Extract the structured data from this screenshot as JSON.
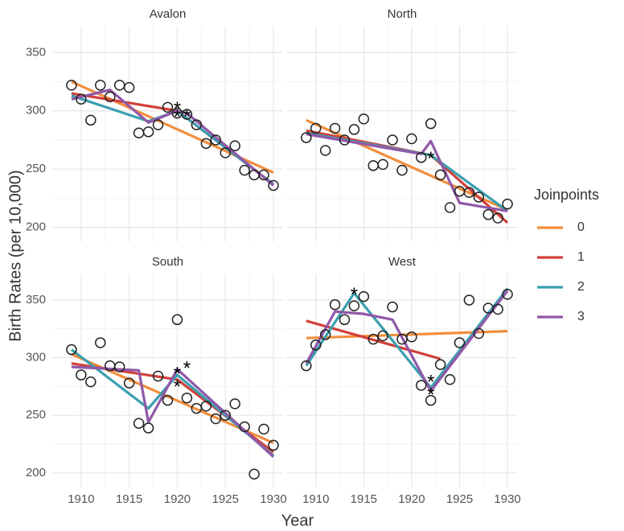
{
  "figure": {
    "x_label": "Year",
    "y_label": "Birth Rates (per 10,000)",
    "legend_title": "Joinpoints"
  },
  "chart_data": [
    {
      "type": "scatter",
      "title": "Avalon",
      "xlim": [
        1907,
        1931
      ],
      "ylim": [
        188,
        373
      ],
      "xticks": [
        1910,
        1915,
        1920,
        1925,
        1930
      ],
      "yticks": [
        200,
        250,
        300,
        350
      ],
      "grid": true,
      "x": [
        1909,
        1910,
        1911,
        1912,
        1913,
        1914,
        1915,
        1916,
        1917,
        1918,
        1919,
        1920,
        1921,
        1922,
        1923,
        1924,
        1925,
        1926,
        1927,
        1928,
        1929,
        1930
      ],
      "values": [
        322,
        310,
        292,
        322,
        312,
        322,
        320,
        281,
        282,
        288,
        303,
        298,
        297,
        288,
        272,
        275,
        264,
        270,
        249,
        245,
        245,
        236
      ],
      "series": [
        {
          "name": "0",
          "color": "#f28e3c",
          "x": [
            1909,
            1930
          ],
          "values": [
            325,
            247
          ]
        },
        {
          "name": "1",
          "color": "#d1403a",
          "x": [
            1909,
            1920,
            1930
          ],
          "values": [
            315,
            300,
            237
          ]
        },
        {
          "name": "2",
          "color": "#3a9fb0",
          "x": [
            1909,
            1917,
            1920,
            1930
          ],
          "values": [
            313,
            291,
            300,
            237
          ]
        },
        {
          "name": "3",
          "color": "#9158a8",
          "x": [
            1909,
            1913,
            1917,
            1920,
            1921,
            1930
          ],
          "values": [
            310,
            318,
            290,
            300,
            298,
            236
          ]
        }
      ],
      "annotations": [
        {
          "text": "*",
          "x": 1920,
          "y": 305
        },
        {
          "text": "*",
          "x": 1920,
          "y": 298
        },
        {
          "text": "*",
          "x": 1921,
          "y": 298
        }
      ]
    },
    {
      "type": "scatter",
      "title": "North",
      "xlim": [
        1907,
        1931
      ],
      "ylim": [
        188,
        373
      ],
      "xticks": [
        1910,
        1915,
        1920,
        1925,
        1930
      ],
      "yticks": [
        200,
        250,
        300,
        350
      ],
      "grid": true,
      "x": [
        1909,
        1910,
        1911,
        1912,
        1913,
        1914,
        1915,
        1916,
        1917,
        1918,
        1919,
        1920,
        1921,
        1922,
        1923,
        1924,
        1925,
        1926,
        1927,
        1928,
        1929,
        1930
      ],
      "values": [
        277,
        285,
        266,
        285,
        275,
        284,
        293,
        253,
        254,
        275,
        249,
        276,
        260,
        289,
        245,
        217,
        231,
        230,
        226,
        211,
        208,
        220
      ],
      "series": [
        {
          "name": "0",
          "color": "#f28e3c",
          "x": [
            1909,
            1930
          ],
          "values": [
            292,
            215
          ]
        },
        {
          "name": "1",
          "color": "#d1403a",
          "x": [
            1909,
            1922,
            1930
          ],
          "values": [
            283,
            262,
            204
          ]
        },
        {
          "name": "2",
          "color": "#3a9fb0",
          "x": [
            1909,
            1922,
            1930
          ],
          "values": [
            281,
            262,
            214
          ]
        },
        {
          "name": "3",
          "color": "#9158a8",
          "x": [
            1909,
            1921,
            1922,
            1925,
            1930
          ],
          "values": [
            280,
            263,
            274,
            221,
            214
          ]
        }
      ],
      "annotations": [
        {
          "text": "*",
          "x": 1922,
          "y": 262
        }
      ]
    },
    {
      "type": "scatter",
      "title": "South",
      "xlim": [
        1907,
        1931
      ],
      "ylim": [
        188,
        373
      ],
      "xticks": [
        1910,
        1915,
        1920,
        1925,
        1930
      ],
      "yticks": [
        200,
        250,
        300,
        350
      ],
      "grid": true,
      "x": [
        1909,
        1910,
        1911,
        1912,
        1913,
        1914,
        1915,
        1916,
        1917,
        1918,
        1919,
        1920,
        1921,
        1922,
        1923,
        1924,
        1925,
        1926,
        1927,
        1928,
        1929,
        1930
      ],
      "values": [
        307,
        285,
        279,
        313,
        293,
        292,
        278,
        243,
        239,
        284,
        263,
        333,
        265,
        256,
        258,
        247,
        250,
        260,
        240,
        199,
        238,
        224
      ],
      "series": [
        {
          "name": "0",
          "color": "#f28e3c",
          "x": [
            1909,
            1930
          ],
          "values": [
            303,
            226
          ]
        },
        {
          "name": "1",
          "color": "#d1403a",
          "x": [
            1909,
            1920,
            1930
          ],
          "values": [
            295,
            281,
            218
          ]
        },
        {
          "name": "2",
          "color": "#3a9fb0",
          "x": [
            1909,
            1917,
            1920,
            1930
          ],
          "values": [
            307,
            256,
            285,
            215
          ]
        },
        {
          "name": "3",
          "color": "#9158a8",
          "x": [
            1909,
            1916,
            1917,
            1920,
            1930
          ],
          "values": [
            292,
            289,
            244,
            290,
            214
          ]
        }
      ],
      "annotations": [
        {
          "text": "*",
          "x": 1920,
          "y": 289
        },
        {
          "text": "*",
          "x": 1920,
          "y": 278
        },
        {
          "text": "*",
          "x": 1921,
          "y": 294
        }
      ]
    },
    {
      "type": "scatter",
      "title": "West",
      "xlim": [
        1907,
        1931
      ],
      "ylim": [
        188,
        373
      ],
      "xticks": [
        1910,
        1915,
        1920,
        1925,
        1930
      ],
      "yticks": [
        200,
        250,
        300,
        350
      ],
      "grid": true,
      "x": [
        1909,
        1910,
        1911,
        1912,
        1913,
        1914,
        1915,
        1916,
        1917,
        1918,
        1919,
        1920,
        1921,
        1922,
        1923,
        1924,
        1925,
        1926,
        1927,
        1928,
        1929,
        1930
      ],
      "values": [
        293,
        311,
        320,
        346,
        333,
        345,
        353,
        316,
        319,
        344,
        316,
        318,
        276,
        263,
        294,
        281,
        313,
        350,
        321,
        343,
        342,
        355
      ],
      "series": [
        {
          "name": "0",
          "color": "#f28e3c",
          "x": [
            1909,
            1930
          ],
          "values": [
            317,
            323
          ]
        },
        {
          "name": "1",
          "color": "#d1403a",
          "x": [
            1909,
            1923
          ],
          "values": [
            332,
            299
          ]
        },
        {
          "name": "2",
          "color": "#3a9fb0",
          "x": [
            1909,
            1914,
            1922,
            1930
          ],
          "values": [
            293,
            356,
            274,
            360
          ]
        },
        {
          "name": "3",
          "color": "#9158a8",
          "x": [
            1909,
            1912,
            1915,
            1918,
            1922,
            1930
          ],
          "values": [
            295,
            340,
            338,
            333,
            271,
            358
          ]
        }
      ],
      "annotations": [
        {
          "text": "*",
          "x": 1914,
          "y": 358
        },
        {
          "text": "*",
          "x": 1922,
          "y": 282
        },
        {
          "text": "*",
          "x": 1922,
          "y": 271
        }
      ]
    }
  ]
}
